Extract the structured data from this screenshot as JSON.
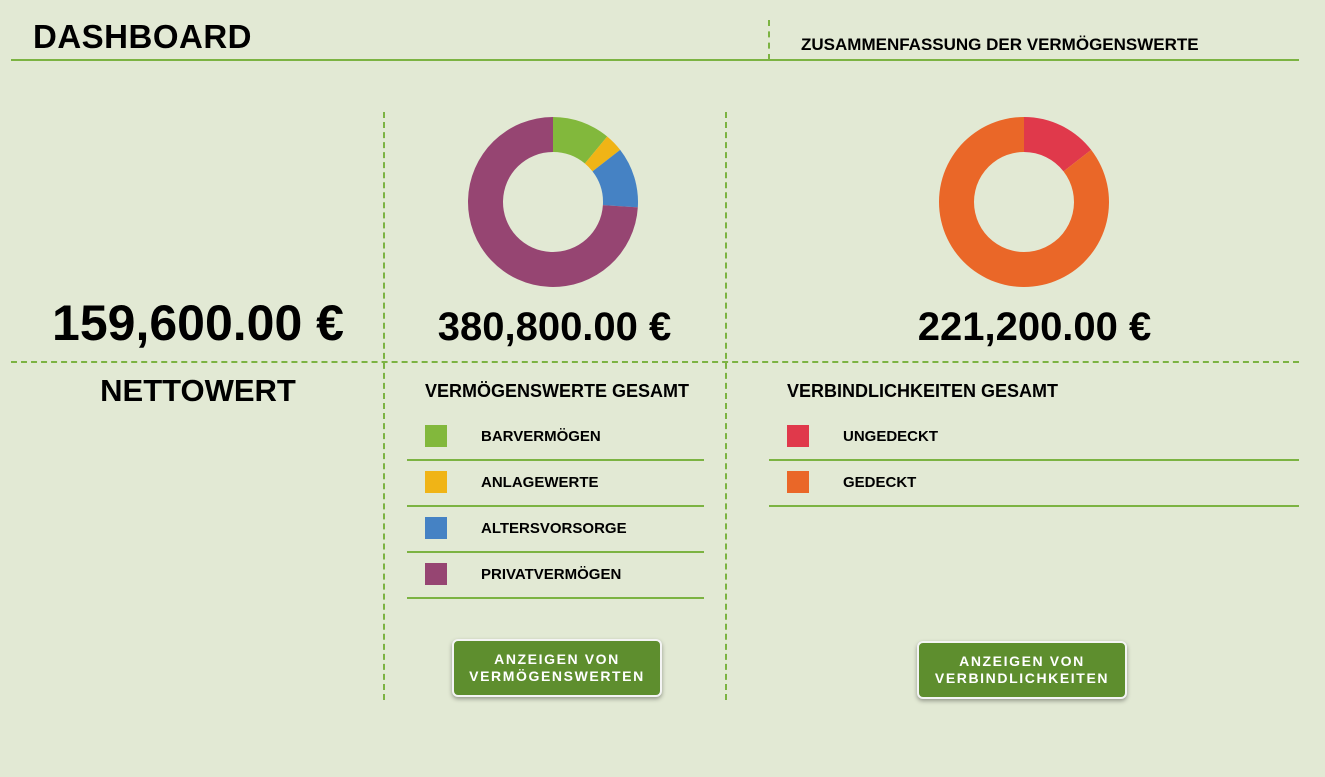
{
  "header": {
    "title": "DASHBOARD",
    "subtitle": "ZUSAMMENFASSUNG DER VERMÖGENSWERTE"
  },
  "net_worth": {
    "value": "159,600.00 €",
    "label": "NETTOWERT"
  },
  "assets": {
    "total": "380,800.00 €",
    "heading": "VERMÖGENSWERTE GESAMT",
    "items": [
      {
        "label": "BARVERMÖGEN",
        "color": "#82b83c"
      },
      {
        "label": "ANLAGEWERTE",
        "color": "#f0b416"
      },
      {
        "label": "ALTERSVORSORGE",
        "color": "#4582c4"
      },
      {
        "label": "PRIVATVERMÖGEN",
        "color": "#964572"
      }
    ],
    "button_line1": "ANZEIGEN VON",
    "button_line2": "VERMÖGENSWERTEN"
  },
  "liabilities": {
    "total": "221,200.00 €",
    "heading": "VERBINDLICHKEITEN GESAMT",
    "items": [
      {
        "label": "UNGEDECKT",
        "color": "#e0394b"
      },
      {
        "label": "GEDECKT",
        "color": "#ea6728"
      }
    ],
    "button_line1": "ANZEIGEN VON",
    "button_line2": "VERBINDLICHKEITEN"
  },
  "chart_data": [
    {
      "type": "pie",
      "categories": [
        "BARVERMÖGEN",
        "ANLAGEWERTE",
        "ALTERSVORSORGE",
        "PRIVATVERMÖGEN"
      ],
      "values": [
        0.11,
        0.035,
        0.115,
        0.74
      ],
      "colors": [
        "#82b83c",
        "#f0b416",
        "#4582c4",
        "#964572"
      ]
    },
    {
      "type": "pie",
      "categories": [
        "UNGEDECKT",
        "GEDECKT"
      ],
      "values": [
        0.145,
        0.855
      ],
      "colors": [
        "#e0394b",
        "#ea6728"
      ]
    }
  ]
}
